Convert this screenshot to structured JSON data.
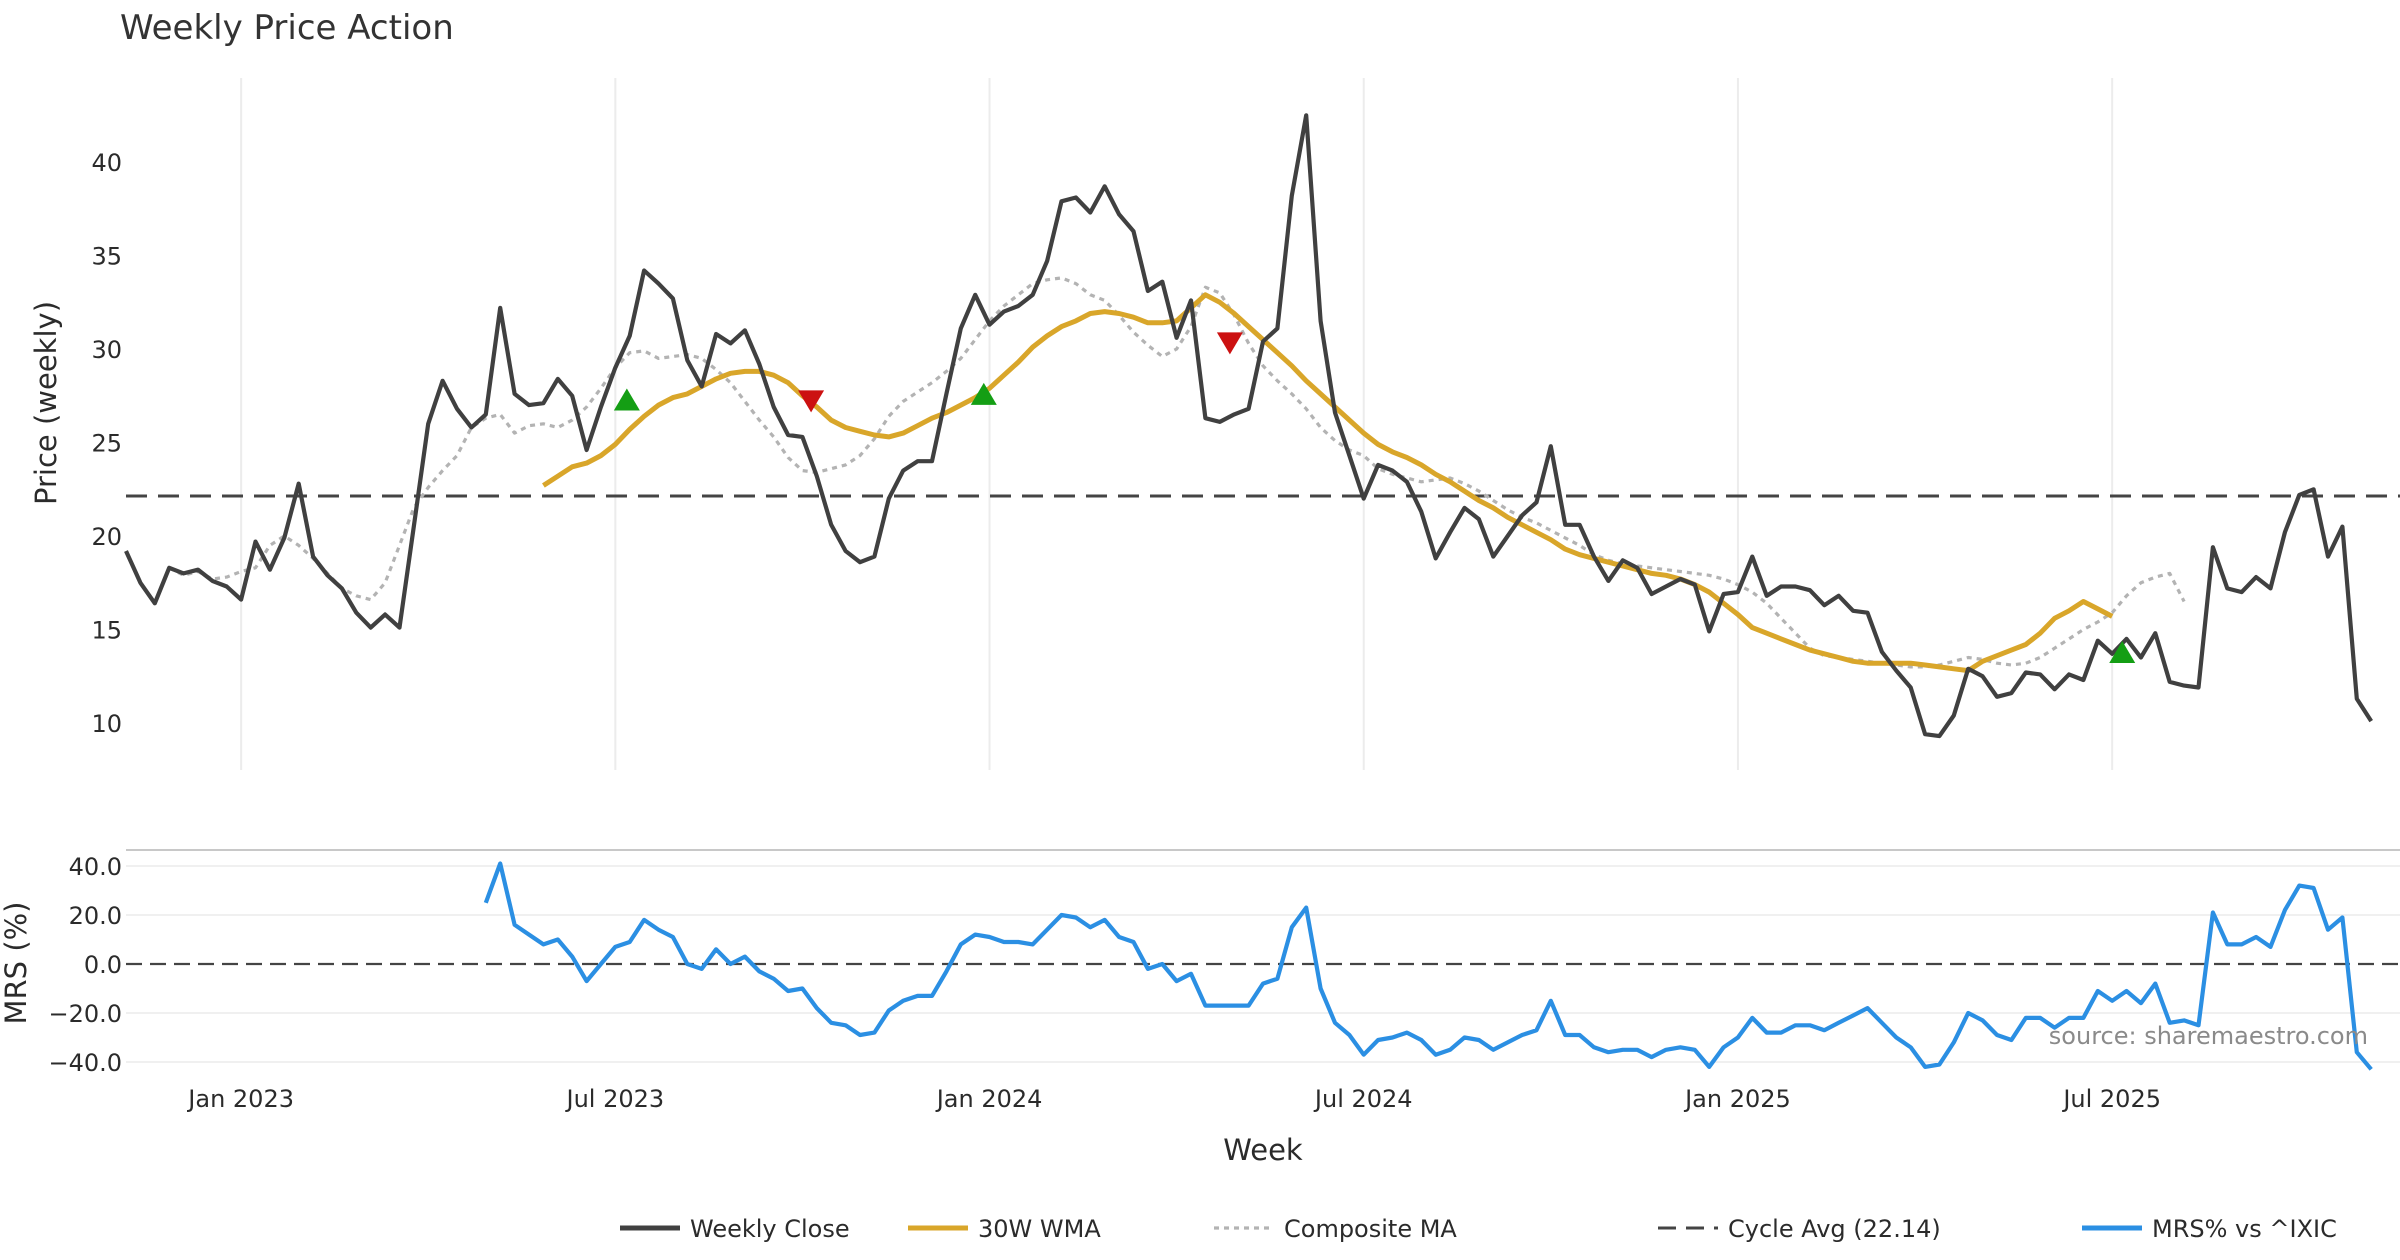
{
  "chart_data": {
    "type": "line",
    "title": "Weekly Price Action",
    "xlabel": "Week",
    "source": "source: sharemaestro.com",
    "x_tick_labels": [
      "Jan 2023",
      "Jul 2023",
      "Jan 2024",
      "Jul 2024",
      "Jan 2025",
      "Jul 2025"
    ],
    "x_tick_weeks": [
      4,
      30,
      56,
      82,
      108,
      134
    ],
    "x_range_weeks": [
      -4,
      154
    ],
    "price_panel": {
      "ylabel": "Price (weekly)",
      "ylim": [
        7.5,
        44.5
      ],
      "yticks": [
        10,
        15,
        20,
        25,
        30,
        35,
        40
      ],
      "grid": "vertical",
      "series": [
        {
          "name": "Weekly Close",
          "key": "close",
          "color": "#404040",
          "style": "solid",
          "start_week": -4,
          "values": [
            19.2,
            17.5,
            16.4,
            18.3,
            18.0,
            18.2,
            17.6,
            17.3,
            16.6,
            19.7,
            18.2,
            19.9,
            22.8,
            18.9,
            17.9,
            17.2,
            15.9,
            15.1,
            15.8,
            15.1,
            20.5,
            26.0,
            28.3,
            26.8,
            25.8,
            26.5,
            32.2,
            27.6,
            27.0,
            27.1,
            28.4,
            27.5,
            24.6,
            26.9,
            29.0,
            30.7,
            34.2,
            33.5,
            32.7,
            29.4,
            28.0,
            30.8,
            30.3,
            31.0,
            29.2,
            26.9,
            25.4,
            25.3,
            23.2,
            20.6,
            19.2,
            18.6,
            18.9,
            22.0,
            23.5,
            24.0,
            24.0,
            27.6,
            31.1,
            32.9,
            31.3,
            32.0,
            32.3,
            32.9,
            34.7,
            37.9,
            38.1,
            37.3,
            38.7,
            37.2,
            36.3,
            33.1,
            33.6,
            30.6,
            32.6,
            26.3,
            26.1,
            26.5,
            26.8,
            30.4,
            31.1,
            38.2,
            42.5,
            31.5,
            26.6,
            24.3,
            22.0,
            23.8,
            23.5,
            22.9,
            21.3,
            18.8,
            20.2,
            21.5,
            20.9,
            18.9,
            20.0,
            21.1,
            21.8,
            24.8,
            20.6,
            20.6,
            18.9,
            17.6,
            18.7,
            18.3,
            16.9,
            17.3,
            17.7,
            17.4,
            14.9,
            16.9,
            17.0,
            18.9,
            16.8,
            17.3,
            17.3,
            17.1,
            16.3,
            16.8,
            16.0,
            15.9,
            13.8,
            12.8,
            11.9,
            9.4,
            9.3,
            10.4,
            12.9,
            12.5,
            11.4,
            11.6,
            12.7,
            12.6,
            11.8,
            12.6,
            12.3,
            14.4,
            13.7,
            14.5,
            13.5,
            14.8,
            12.2,
            12.0,
            11.9,
            19.4,
            17.2,
            17.0,
            17.8,
            17.2,
            20.2,
            22.2,
            22.5,
            18.9,
            20.5,
            11.3,
            10.1
          ]
        },
        {
          "name": "30W WMA",
          "key": "wma",
          "color": "#d9a62a",
          "style": "solid",
          "start_week": 25,
          "values": [
            22.7,
            23.2,
            23.7,
            23.9,
            24.3,
            24.9,
            25.7,
            26.4,
            27.0,
            27.4,
            27.6,
            28.0,
            28.4,
            28.7,
            28.8,
            28.8,
            28.6,
            28.2,
            27.5,
            26.9,
            26.2,
            25.8,
            25.6,
            25.4,
            25.3,
            25.5,
            25.9,
            26.3,
            26.6,
            27.0,
            27.4,
            27.9,
            28.6,
            29.3,
            30.1,
            30.7,
            31.2,
            31.5,
            31.9,
            32.0,
            31.9,
            31.7,
            31.4,
            31.4,
            31.5,
            32.2,
            32.9,
            32.5,
            31.9,
            31.2,
            30.5,
            29.8,
            29.1,
            28.3,
            27.6,
            26.9,
            26.2,
            25.5,
            24.9,
            24.5,
            24.2,
            23.8,
            23.3,
            22.9,
            22.4,
            21.9,
            21.5,
            21.0,
            20.6,
            20.2,
            19.8,
            19.3,
            19.0,
            18.8,
            18.6,
            18.4,
            18.2,
            18.0,
            17.9,
            17.7,
            17.4,
            17.0,
            16.4,
            15.8,
            15.1,
            14.8,
            14.5,
            14.2,
            13.9,
            13.7,
            13.5,
            13.3,
            13.2,
            13.2,
            13.2,
            13.2,
            13.1,
            13.0,
            12.9,
            12.8,
            13.3,
            13.6,
            13.9,
            14.2,
            14.8,
            15.6,
            16.0,
            16.5,
            16.1,
            15.7
          ]
        },
        {
          "name": "Composite MA",
          "key": "composite",
          "color": "#b3b3b3",
          "style": "dotted",
          "start_week": -1,
          "values": [
            18.3,
            17.9,
            18.1,
            17.7,
            17.8,
            18.1,
            18.3,
            19.5,
            20.0,
            19.5,
            18.8,
            18.0,
            17.2,
            16.8,
            16.6,
            17.5,
            19.5,
            21.5,
            22.6,
            23.5,
            24.3,
            25.8,
            26.3,
            26.5,
            25.5,
            25.9,
            26.0,
            25.8,
            26.2,
            26.9,
            27.9,
            29.0,
            29.8,
            29.9,
            29.5,
            29.6,
            29.7,
            29.5,
            28.9,
            28.2,
            27.2,
            26.2,
            25.3,
            24.2,
            23.5,
            23.4,
            23.6,
            23.8,
            24.3,
            25.2,
            26.4,
            27.2,
            27.7,
            28.2,
            28.8,
            29.5,
            30.5,
            31.5,
            32.3,
            32.9,
            33.5,
            33.7,
            33.8,
            33.5,
            32.9,
            32.6,
            31.8,
            30.9,
            30.2,
            29.6,
            30.0,
            31.2,
            33.3,
            33.0,
            31.8,
            30.3,
            29.1,
            28.3,
            27.6,
            26.8,
            25.8,
            25.1,
            24.6,
            24.3,
            23.6,
            23.3,
            23.1,
            22.9,
            23.0,
            23.1,
            22.8,
            22.4,
            21.9,
            21.4,
            21.0,
            20.7,
            20.3,
            19.9,
            19.5,
            19.0,
            18.7,
            18.5,
            18.4,
            18.3,
            18.2,
            18.1,
            18.0,
            17.9,
            17.7,
            17.4,
            17.0,
            16.4,
            15.6,
            14.8,
            14.0,
            13.6,
            13.5,
            13.4,
            13.3,
            13.2,
            13.1,
            13.0,
            13.0,
            13.1,
            13.3,
            13.5,
            13.4,
            13.2,
            13.1,
            13.2,
            13.5,
            14.0,
            14.5,
            15.0,
            15.4,
            15.9,
            16.8,
            17.5,
            17.8,
            18.0,
            16.5
          ]
        }
      ],
      "cycle_avg": {
        "name": "Cycle Avg (22.14)",
        "value": 22.14,
        "color": "#444444"
      },
      "markers": [
        {
          "type": "buy",
          "week": 30.8,
          "value": 27.3,
          "color": "#149e14"
        },
        {
          "type": "sell",
          "week": 43.6,
          "value": 27.2,
          "color": "#cc1111"
        },
        {
          "type": "buy",
          "week": 55.6,
          "value": 27.6,
          "color": "#149e14"
        },
        {
          "type": "sell",
          "week": 72.7,
          "value": 30.3,
          "color": "#cc1111"
        },
        {
          "type": "buy",
          "week": 134.7,
          "value": 13.8,
          "color": "#149e14"
        }
      ]
    },
    "mrs_panel": {
      "ylabel": "MRS (%)",
      "ylim": [
        -43,
        44
      ],
      "yticks": [
        40.0,
        20.0,
        0.0,
        -20.0,
        -40.0
      ],
      "tick_labels": [
        "40.0",
        "20.0",
        "0.0",
        "−20.0",
        "−40.0"
      ],
      "zero_line": 0,
      "series": [
        {
          "name": "MRS% vs ^IXIC",
          "key": "mrs",
          "color": "#2b8fe3",
          "start_week": 21,
          "values": [
            25,
            41,
            16,
            12,
            8,
            10,
            3,
            -7,
            0,
            7,
            9,
            18,
            14,
            11,
            0,
            -2,
            6,
            0,
            3,
            -3,
            -6,
            -11,
            -10,
            -18,
            -24,
            -25,
            -29,
            -28,
            -19,
            -15,
            -13,
            -13,
            -3,
            8,
            12,
            11,
            9,
            9,
            8,
            14,
            20,
            19,
            15,
            18,
            11,
            9,
            -2,
            0,
            -7,
            -4,
            -17,
            -17,
            -17,
            -17,
            -8,
            -6,
            15,
            23,
            -10,
            -24,
            -29,
            -37,
            -31,
            -30,
            -28,
            -31,
            -37,
            -35,
            -30,
            -31,
            -35,
            -32,
            -29,
            -27,
            -15,
            -29,
            -29,
            -34,
            -36,
            -35,
            -35,
            -38,
            -35,
            -34,
            -35,
            -42,
            -34,
            -30,
            -22,
            -28,
            -28,
            -25,
            -25,
            -27,
            -24,
            -21,
            -18,
            -24,
            -30,
            -34,
            -42,
            -41,
            -32,
            -20,
            -23,
            -29,
            -31,
            -22,
            -22,
            -26,
            -22,
            -22,
            -11,
            -15,
            -11,
            -16,
            -8,
            -24,
            -23,
            -25,
            21,
            8,
            8,
            11,
            7,
            22,
            32,
            31,
            14,
            19,
            -36,
            -43
          ]
        }
      ]
    },
    "legend": [
      {
        "label": "Weekly Close",
        "color": "#404040",
        "style": "solid"
      },
      {
        "label": "30W WMA",
        "color": "#d9a62a",
        "style": "solid"
      },
      {
        "label": "Composite MA",
        "color": "#b3b3b3",
        "style": "dotted"
      },
      {
        "label": "Cycle Avg (22.14)",
        "color": "#444444",
        "style": "dashed"
      },
      {
        "label": "MRS% vs ^IXIC",
        "color": "#2b8fe3",
        "style": "solid"
      }
    ],
    "legend_position": "bottom-center"
  }
}
